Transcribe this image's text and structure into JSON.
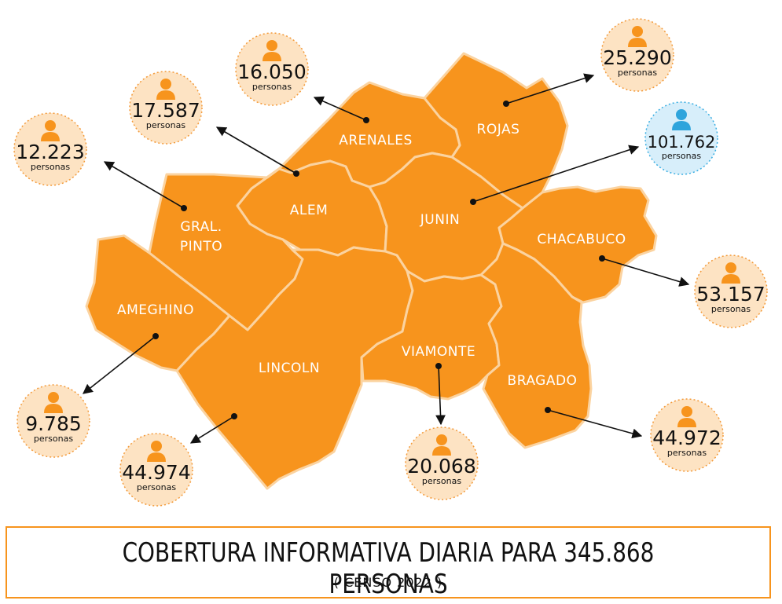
{
  "map": {
    "districts": [
      {
        "id": "arenales",
        "name": "ARENALES"
      },
      {
        "id": "rojas",
        "name": "ROJAS"
      },
      {
        "id": "alem",
        "name": "ALEM"
      },
      {
        "id": "junin",
        "name": "JUNIN"
      },
      {
        "id": "gral-pinto",
        "name": "GRAL.\nPINTO"
      },
      {
        "id": "chacabuco",
        "name": "CHACABUCO"
      },
      {
        "id": "ameghino",
        "name": "AMEGHINO"
      },
      {
        "id": "lincoln",
        "name": "LINCOLN"
      },
      {
        "id": "viamonte",
        "name": "VIAMONTE"
      },
      {
        "id": "bragado",
        "name": "BRAGADO"
      }
    ],
    "populations": [
      {
        "district": "arenales",
        "value": "16.050",
        "unit": "personas",
        "highlight": false
      },
      {
        "district": "rojas",
        "value": "25.290",
        "unit": "personas",
        "highlight": false
      },
      {
        "district": "alem",
        "value": "17.587",
        "unit": "personas",
        "highlight": false
      },
      {
        "district": "gral-pinto",
        "value": "12.223",
        "unit": "personas",
        "highlight": false
      },
      {
        "district": "junin",
        "value": "101.762",
        "unit": "personas",
        "highlight": true
      },
      {
        "district": "chacabuco",
        "value": "53.157",
        "unit": "personas",
        "highlight": false
      },
      {
        "district": "ameghino",
        "value": "9.785",
        "unit": "personas",
        "highlight": false
      },
      {
        "district": "lincoln",
        "value": "44.974",
        "unit": "personas",
        "highlight": false
      },
      {
        "district": "viamonte",
        "value": "20.068",
        "unit": "personas",
        "highlight": false
      },
      {
        "district": "bragado",
        "value": "44.972",
        "unit": "personas",
        "highlight": false
      }
    ],
    "colors": {
      "district_fill": "#f7941d",
      "district_border": "#fbd3a0",
      "bubble_fill": "#fde3c3",
      "bubble_highlight_fill": "#d7eefa",
      "person_icon": "#f7941d",
      "person_icon_highlight": "#2ea4dc"
    },
    "icon": "person-icon"
  },
  "footer": {
    "title": "COBERTURA INFORMATIVA DIARIA PARA 345.868 PERSONAS",
    "subtitle": "( CENSO 2022 )"
  }
}
